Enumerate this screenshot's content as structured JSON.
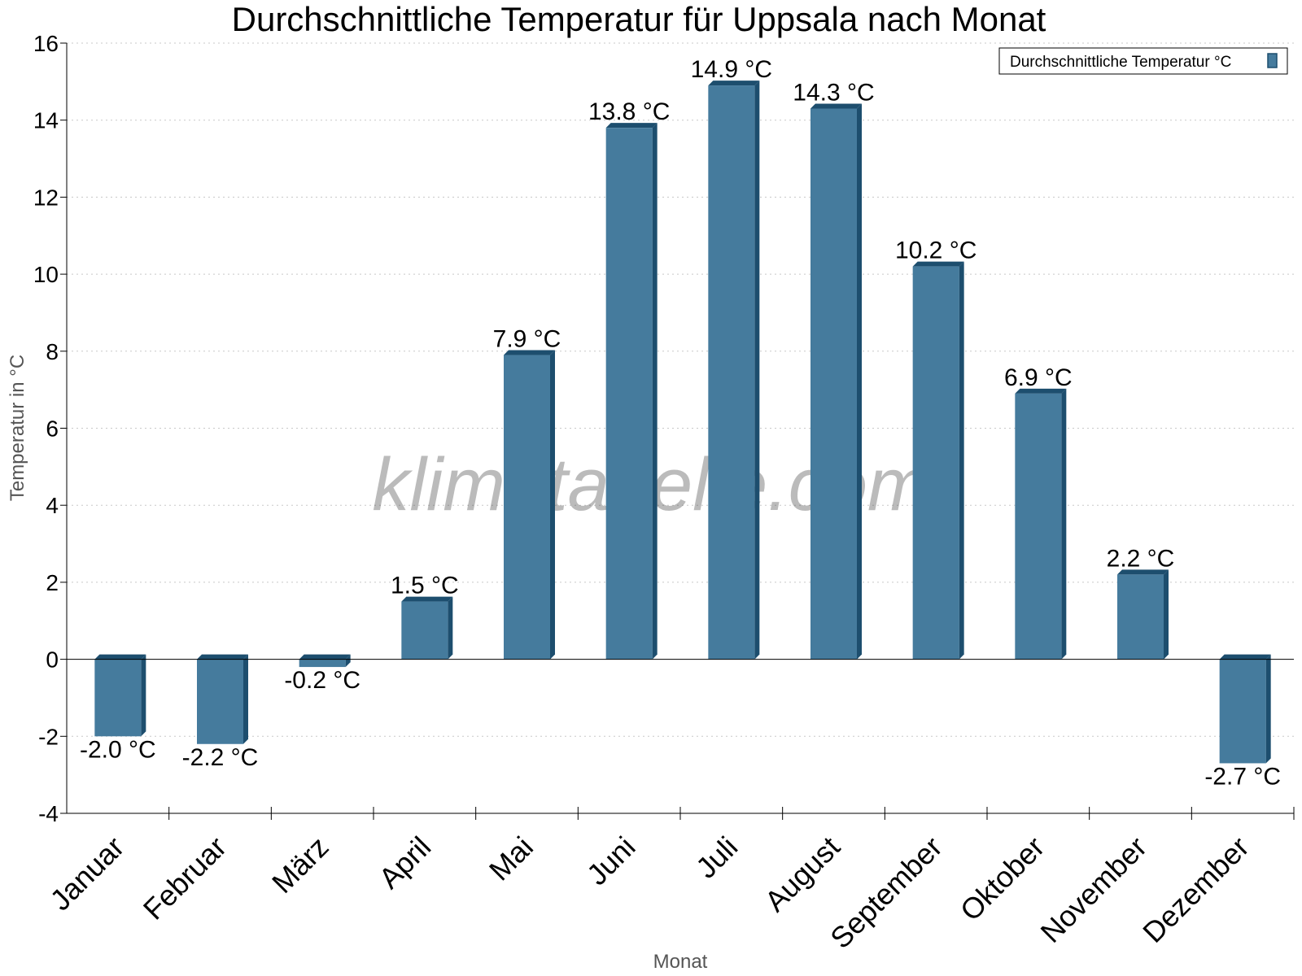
{
  "chart_data": {
    "type": "bar",
    "title": "Durchschnittliche Temperatur für Uppsala nach Monat",
    "xlabel": "Monat",
    "ylabel": "Temperatur in °C",
    "ylim": [
      -4,
      16
    ],
    "yticks": [
      -4,
      -2,
      0,
      2,
      4,
      6,
      8,
      10,
      12,
      14,
      16
    ],
    "grid": true,
    "legend_position": "top-right",
    "categories": [
      "Januar",
      "Februar",
      "März",
      "April",
      "Mai",
      "Juni",
      "Juli",
      "August",
      "September",
      "Oktober",
      "November",
      "Dezember"
    ],
    "series": [
      {
        "name": "Durchschnittliche Temperatur °C",
        "values": [
          -2.0,
          -2.2,
          -0.2,
          1.5,
          7.9,
          13.8,
          14.9,
          14.3,
          10.2,
          6.9,
          2.2,
          -2.7
        ],
        "labels": [
          "-2.0 °C",
          "-2.2 °C",
          "-0.2 °C",
          "1.5 °C",
          "7.9 °C",
          "13.8 °C",
          "14.9 °C",
          "14.3 °C",
          "10.2 °C",
          "6.9 °C",
          "2.2 °C",
          "-2.7 °C"
        ]
      }
    ],
    "watermark": "klimatabelle.com",
    "colors": {
      "bar": "#457b9d",
      "bar_side": "#1d4e6e",
      "grid": "#c8c8c8",
      "axis": "#000000"
    }
  }
}
